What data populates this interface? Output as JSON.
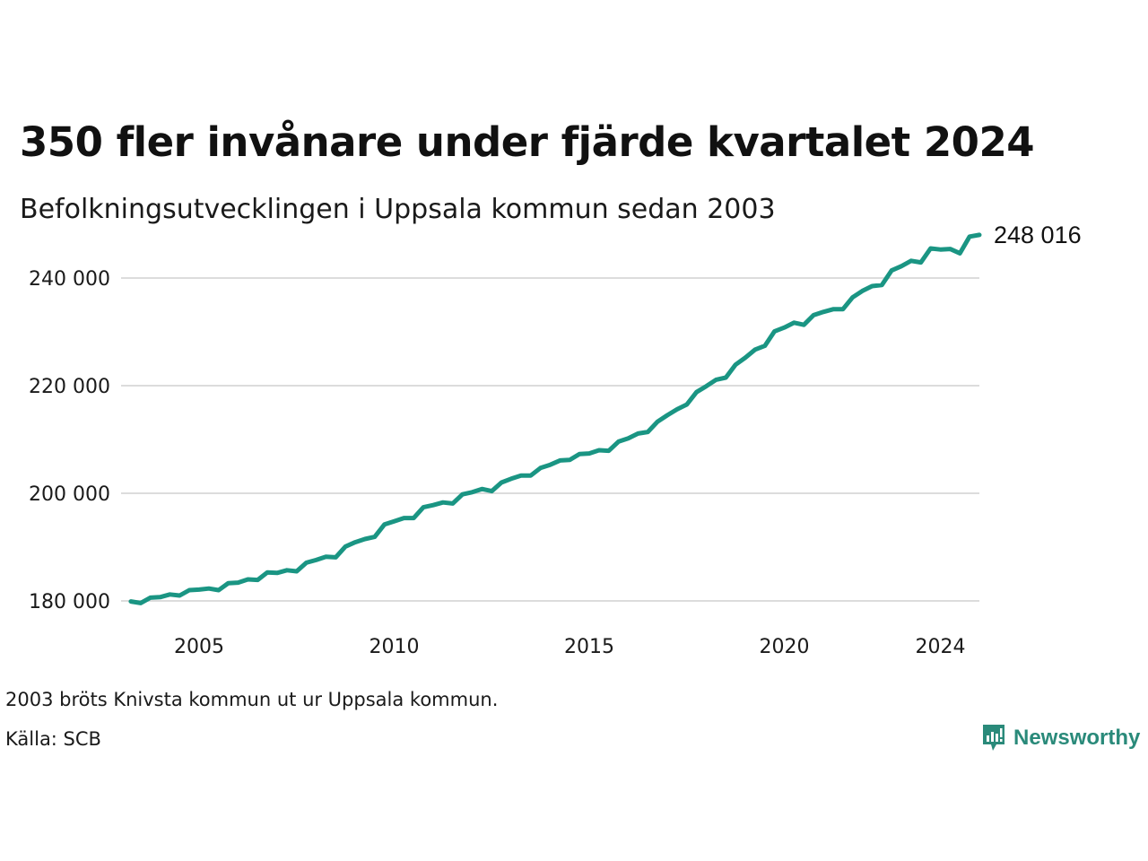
{
  "header": {
    "title": "350 fler invånare under fjärde kvartalet 2024",
    "subtitle": "Befolkningsutvecklingen i Uppsala kommun sedan 2003"
  },
  "footer": {
    "note": "2003 bröts Knivsta kommun ut ur Uppsala kommun.",
    "source": "Källa: SCB",
    "brand": "Newsworthy",
    "brand_icon": "newsworthy-logo-icon"
  },
  "colors": {
    "line": "#1a9583",
    "grid": "#dcdcdc",
    "brand": "#2a8a7a"
  },
  "chart_data": {
    "type": "line",
    "title": "350 fler invånare under fjärde kvartalet 2024",
    "subtitle": "Befolkningsutvecklingen i Uppsala kommun sedan 2003",
    "xlim": [
      2003.0,
      2025.0
    ],
    "ylim": [
      175000,
      250000
    ],
    "x_ticks": [
      2005,
      2010,
      2015,
      2020,
      2024
    ],
    "x_tick_labels": [
      "2005",
      "2010",
      "2015",
      "2020",
      "2024"
    ],
    "y_ticks": [
      180000,
      200000,
      220000,
      240000
    ],
    "y_tick_labels": [
      "180 000",
      "200 000",
      "220 000",
      "240 000"
    ],
    "grid": "horizontal",
    "end_label": "248 016",
    "series": [
      {
        "name": "",
        "x": [
          2003.25,
          2003.5,
          2003.75,
          2004.0,
          2004.25,
          2004.5,
          2004.75,
          2005.0,
          2005.25,
          2005.5,
          2005.75,
          2006.0,
          2006.25,
          2006.5,
          2006.75,
          2007.0,
          2007.25,
          2007.5,
          2007.75,
          2008.0,
          2008.25,
          2008.5,
          2008.75,
          2009.0,
          2009.25,
          2009.5,
          2009.75,
          2010.0,
          2010.25,
          2010.5,
          2010.75,
          2011.0,
          2011.25,
          2011.5,
          2011.75,
          2012.0,
          2012.25,
          2012.5,
          2012.75,
          2013.0,
          2013.25,
          2013.5,
          2013.75,
          2014.0,
          2014.25,
          2014.5,
          2014.75,
          2015.0,
          2015.25,
          2015.5,
          2015.75,
          2016.0,
          2016.25,
          2016.5,
          2016.75,
          2017.0,
          2017.25,
          2017.5,
          2017.75,
          2018.0,
          2018.25,
          2018.5,
          2018.75,
          2019.0,
          2019.25,
          2019.5,
          2019.75,
          2020.0,
          2020.25,
          2020.5,
          2020.75,
          2021.0,
          2021.25,
          2021.5,
          2021.75,
          2022.0,
          2022.25,
          2022.5,
          2022.75,
          2023.0,
          2023.25,
          2023.5,
          2023.75,
          2024.0,
          2024.25,
          2024.5,
          2024.75,
          2025.0
        ],
        "values": [
          179900,
          179600,
          180600,
          180700,
          181200,
          181000,
          182000,
          182100,
          182300,
          182000,
          183300,
          183400,
          184000,
          183900,
          185300,
          185200,
          185700,
          185500,
          187100,
          187600,
          188200,
          188100,
          190100,
          190900,
          191500,
          191900,
          194200,
          194800,
          195400,
          195400,
          197400,
          197800,
          198300,
          198100,
          199800,
          200200,
          200800,
          200400,
          202000,
          202700,
          203300,
          203300,
          204700,
          205300,
          206100,
          206200,
          207300,
          207400,
          208000,
          207900,
          209600,
          210200,
          211100,
          211400,
          213300,
          214500,
          215600,
          216500,
          218800,
          219900,
          221100,
          221500,
          223900,
          225200,
          226700,
          227400,
          230100,
          230800,
          231700,
          231300,
          233100,
          233700,
          234200,
          234200,
          236400,
          237600,
          238500,
          238700,
          241400,
          242200,
          243200,
          242900,
          245500,
          245300,
          245400,
          244600,
          247700,
          248016
        ]
      }
    ]
  }
}
